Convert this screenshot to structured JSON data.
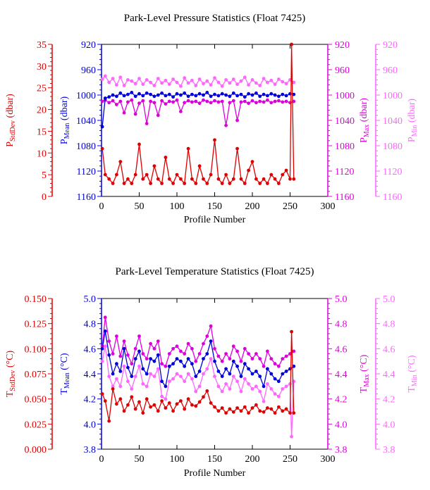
{
  "colors": {
    "red": "#dd0000",
    "blue": "#0000dd",
    "magenta": "#dd00dd",
    "pink": "#ff66ff",
    "black": "#000000"
  },
  "chart_data": [
    {
      "type": "line",
      "title": "Park-Level Pressure Statistics (Float 7425)",
      "xlabel": "Profile Number",
      "xlim": [
        0,
        300
      ],
      "xticks": [
        "0",
        "50",
        "100",
        "150",
        "200",
        "250",
        "300"
      ],
      "axes": {
        "stddev": {
          "label_main": "P",
          "label_sub": "StdDev",
          "label_tail": " (dbar)",
          "ylim": [
            0,
            35
          ],
          "ticks": [
            "0",
            "5",
            "10",
            "15",
            "20",
            "25",
            "30",
            "35"
          ]
        },
        "mean": {
          "label_main": "P",
          "label_sub": "Mean",
          "label_tail": " (dbar)",
          "ylim": [
            1160,
            920
          ],
          "inverted": true,
          "ticks": [
            "920",
            "960",
            "1000",
            "1040",
            "1080",
            "1120",
            "1160"
          ]
        },
        "max": {
          "label_main": "P",
          "label_sub": "Max",
          "label_tail": " (dbar)",
          "ylim": [
            1160,
            920
          ],
          "inverted": true,
          "ticks": [
            "920",
            "960",
            "1000",
            "1040",
            "1080",
            "1120",
            "1160"
          ]
        },
        "min": {
          "label_main": "P",
          "label_sub": "Min",
          "label_tail": " (dbar)",
          "ylim": [
            1160,
            920
          ],
          "inverted": true,
          "ticks": [
            "920",
            "960",
            "1000",
            "1040",
            "1080",
            "1120",
            "1160"
          ]
        }
      },
      "series": [
        {
          "axis": "stddev",
          "color": "red",
          "x": [
            1,
            5,
            10,
            15,
            20,
            25,
            30,
            35,
            40,
            45,
            50,
            55,
            60,
            65,
            70,
            75,
            80,
            85,
            90,
            95,
            100,
            105,
            110,
            115,
            120,
            125,
            130,
            135,
            140,
            145,
            150,
            155,
            160,
            165,
            170,
            175,
            180,
            185,
            190,
            195,
            200,
            205,
            210,
            215,
            220,
            225,
            230,
            235,
            240,
            245,
            250,
            252,
            255
          ],
          "y": [
            11,
            5,
            4,
            3,
            5,
            8,
            3,
            4,
            3,
            5,
            12,
            4,
            5,
            3,
            7,
            4,
            3,
            9,
            4,
            3,
            5,
            4,
            3,
            11,
            4,
            3,
            7,
            4,
            3,
            5,
            13,
            4,
            3,
            5,
            3,
            4,
            11,
            4,
            3,
            6,
            8,
            4,
            3,
            4,
            3,
            5,
            4,
            3,
            5,
            6,
            4,
            35,
            4
          ]
        },
        {
          "axis": "mean",
          "color": "blue",
          "x": [
            1,
            5,
            10,
            15,
            20,
            25,
            30,
            35,
            40,
            45,
            50,
            55,
            60,
            65,
            70,
            75,
            80,
            85,
            90,
            95,
            100,
            105,
            110,
            115,
            120,
            125,
            130,
            135,
            140,
            145,
            150,
            155,
            160,
            165,
            170,
            175,
            180,
            185,
            190,
            195,
            200,
            205,
            210,
            215,
            220,
            225,
            230,
            235,
            240,
            245,
            250,
            255
          ],
          "y": [
            1050,
            1005,
            1003,
            1000,
            1002,
            997,
            1001,
            999,
            996,
            1002,
            998,
            1001,
            997,
            999,
            1002,
            1000,
            997,
            1001,
            999,
            1003,
            998,
            1000,
            997,
            1002,
            999,
            1001,
            998,
            1000,
            996,
            1002,
            999,
            1001,
            998,
            1000,
            1002,
            997,
            1001,
            999,
            1003,
            998,
            1000,
            997,
            1002,
            999,
            1001,
            998,
            1000,
            1002,
            999,
            1001,
            998,
            999
          ]
        },
        {
          "axis": "max",
          "color": "magenta",
          "x": [
            1,
            5,
            10,
            15,
            20,
            25,
            30,
            35,
            40,
            45,
            50,
            55,
            60,
            65,
            70,
            75,
            80,
            85,
            90,
            95,
            100,
            105,
            110,
            115,
            120,
            125,
            130,
            135,
            140,
            145,
            150,
            155,
            160,
            165,
            170,
            175,
            180,
            185,
            190,
            195,
            200,
            205,
            210,
            215,
            220,
            225,
            230,
            235,
            240,
            245,
            250,
            255
          ],
          "y": [
            1010,
            1008,
            1012,
            1009,
            1015,
            1010,
            1028,
            1011,
            1008,
            1030,
            1013,
            1009,
            1045,
            1010,
            1012,
            1032,
            1009,
            1014,
            1010,
            1011,
            1008,
            1026,
            1012,
            1009,
            1011,
            1010,
            1013,
            1008,
            1010,
            1012,
            1009,
            1011,
            1010,
            1048,
            1012,
            1009,
            1040,
            1011,
            1010,
            1013,
            1009,
            1012,
            1010,
            1011,
            1008,
            1012,
            1010,
            1009,
            1011,
            1010,
            1012,
            1010
          ]
        },
        {
          "axis": "min",
          "color": "pink",
          "x": [
            1,
            5,
            10,
            15,
            20,
            25,
            30,
            35,
            40,
            45,
            50,
            55,
            60,
            65,
            70,
            75,
            80,
            85,
            90,
            95,
            100,
            105,
            110,
            115,
            120,
            125,
            130,
            135,
            140,
            145,
            150,
            155,
            160,
            165,
            170,
            175,
            180,
            185,
            190,
            195,
            200,
            205,
            210,
            215,
            220,
            225,
            230,
            235,
            240,
            245,
            250,
            255
          ],
          "y": [
            975,
            970,
            980,
            974,
            984,
            972,
            985,
            976,
            978,
            982,
            974,
            983,
            976,
            980,
            985,
            974,
            981,
            977,
            983,
            975,
            980,
            986,
            973,
            981,
            977,
            985,
            975,
            982,
            978,
            984,
            973,
            980,
            986,
            976,
            981,
            975,
            983,
            978,
            972,
            984,
            976,
            981,
            985,
            974,
            980,
            977,
            983,
            975,
            979,
            982,
            976,
            980
          ]
        }
      ]
    },
    {
      "type": "line",
      "title": "Park-Level Temperature Statistics (Float 7425)",
      "xlabel": "Profile Number",
      "xlim": [
        0,
        300
      ],
      "xticks": [
        "0",
        "50",
        "100",
        "150",
        "200",
        "250",
        "300"
      ],
      "axes": {
        "stddev": {
          "label_main": "T",
          "label_sub": "StdDev",
          "label_tail": " (°C)",
          "ylim": [
            0,
            0.15
          ],
          "ticks": [
            "0.000",
            "0.025",
            "0.050",
            "0.075",
            "0.100",
            "0.125",
            "0.150"
          ]
        },
        "mean": {
          "label_main": "T",
          "label_sub": "Mean",
          "label_tail": " (°C)",
          "ylim": [
            3.8,
            5.0
          ],
          "ticks": [
            "3.8",
            "4.0",
            "4.2",
            "4.4",
            "4.6",
            "4.8",
            "5.0"
          ]
        },
        "max": {
          "label_main": "T",
          "label_sub": "Max",
          "label_tail": " (°C)",
          "ylim": [
            3.8,
            5.0
          ],
          "ticks": [
            "3.8",
            "4.0",
            "4.2",
            "4.4",
            "4.6",
            "4.8",
            "5.0"
          ]
        },
        "min": {
          "label_main": "T",
          "label_sub": "Min",
          "label_tail": " (°C)",
          "ylim": [
            3.8,
            5.0
          ],
          "ticks": [
            "3.8",
            "4.0",
            "4.2",
            "4.4",
            "4.6",
            "4.8",
            "5.0"
          ]
        }
      },
      "series": [
        {
          "axis": "stddev",
          "color": "red",
          "x": [
            1,
            5,
            10,
            15,
            20,
            25,
            30,
            35,
            40,
            45,
            50,
            55,
            60,
            65,
            70,
            75,
            80,
            85,
            90,
            95,
            100,
            105,
            110,
            115,
            120,
            125,
            130,
            135,
            140,
            145,
            150,
            155,
            160,
            165,
            170,
            175,
            180,
            185,
            190,
            195,
            200,
            205,
            210,
            215,
            220,
            225,
            230,
            235,
            240,
            245,
            250,
            252,
            255
          ],
          "y": [
            0.055,
            0.048,
            0.028,
            0.06,
            0.045,
            0.05,
            0.038,
            0.044,
            0.052,
            0.04,
            0.047,
            0.036,
            0.05,
            0.042,
            0.044,
            0.038,
            0.048,
            0.041,
            0.046,
            0.038,
            0.045,
            0.048,
            0.04,
            0.05,
            0.044,
            0.043,
            0.047,
            0.052,
            0.058,
            0.046,
            0.042,
            0.038,
            0.041,
            0.036,
            0.04,
            0.037,
            0.041,
            0.038,
            0.042,
            0.036,
            0.041,
            0.044,
            0.038,
            0.037,
            0.041,
            0.04,
            0.036,
            0.042,
            0.038,
            0.04,
            0.036,
            0.117,
            0.036
          ]
        },
        {
          "axis": "mean",
          "color": "blue",
          "x": [
            1,
            5,
            10,
            15,
            20,
            25,
            30,
            35,
            40,
            45,
            50,
            55,
            60,
            65,
            70,
            75,
            80,
            85,
            90,
            95,
            100,
            105,
            110,
            115,
            120,
            125,
            130,
            135,
            140,
            145,
            150,
            155,
            160,
            165,
            170,
            175,
            180,
            185,
            190,
            195,
            200,
            205,
            210,
            215,
            220,
            225,
            230,
            235,
            240,
            245,
            250,
            255
          ],
          "y": [
            4.6,
            4.74,
            4.55,
            4.4,
            4.48,
            4.42,
            4.6,
            4.45,
            4.38,
            4.52,
            4.58,
            4.44,
            4.4,
            4.52,
            4.5,
            4.55,
            4.34,
            4.3,
            4.46,
            4.48,
            4.52,
            4.5,
            4.46,
            4.52,
            4.48,
            4.38,
            4.42,
            4.52,
            4.56,
            4.66,
            4.5,
            4.42,
            4.38,
            4.44,
            4.4,
            4.5,
            4.46,
            4.38,
            4.48,
            4.44,
            4.4,
            4.42,
            4.38,
            4.3,
            4.44,
            4.4,
            4.36,
            4.34,
            4.4,
            4.42,
            4.44,
            4.46
          ]
        },
        {
          "axis": "max",
          "color": "magenta",
          "x": [
            1,
            5,
            10,
            15,
            20,
            25,
            30,
            35,
            40,
            45,
            50,
            55,
            60,
            65,
            70,
            75,
            80,
            85,
            90,
            95,
            100,
            105,
            110,
            115,
            120,
            125,
            130,
            135,
            140,
            145,
            150,
            155,
            160,
            165,
            170,
            175,
            180,
            185,
            190,
            195,
            200,
            205,
            210,
            215,
            220,
            225,
            230,
            235,
            240,
            245,
            250,
            255
          ],
          "y": [
            4.62,
            4.85,
            4.66,
            4.56,
            4.7,
            4.54,
            4.66,
            4.55,
            4.48,
            4.6,
            4.7,
            4.56,
            4.52,
            4.64,
            4.6,
            4.66,
            4.48,
            4.46,
            4.56,
            4.6,
            4.62,
            4.58,
            4.56,
            4.64,
            4.6,
            4.5,
            4.56,
            4.64,
            4.7,
            4.78,
            4.6,
            4.54,
            4.5,
            4.56,
            4.52,
            4.62,
            4.58,
            4.5,
            4.6,
            4.56,
            4.52,
            4.56,
            4.52,
            4.46,
            4.58,
            4.52,
            4.48,
            4.46,
            4.52,
            4.54,
            4.56,
            4.58
          ]
        },
        {
          "axis": "min",
          "color": "pink",
          "x": [
            1,
            5,
            10,
            15,
            20,
            25,
            30,
            35,
            40,
            45,
            50,
            55,
            60,
            65,
            70,
            75,
            80,
            85,
            90,
            95,
            100,
            105,
            110,
            115,
            120,
            125,
            130,
            135,
            140,
            145,
            150,
            155,
            160,
            165,
            170,
            175,
            180,
            185,
            190,
            195,
            200,
            205,
            210,
            215,
            220,
            225,
            230,
            235,
            240,
            245,
            250,
            252,
            255
          ],
          "y": [
            4.5,
            4.62,
            4.38,
            4.3,
            4.36,
            4.3,
            4.46,
            4.34,
            4.28,
            4.38,
            4.46,
            4.32,
            4.3,
            4.4,
            4.38,
            4.44,
            4.22,
            4.2,
            4.34,
            4.36,
            4.4,
            4.38,
            4.34,
            4.4,
            4.36,
            4.26,
            4.3,
            4.4,
            4.44,
            4.52,
            4.38,
            4.3,
            4.26,
            4.32,
            4.28,
            4.38,
            4.34,
            4.26,
            4.36,
            4.32,
            4.28,
            4.3,
            4.26,
            4.18,
            4.32,
            4.28,
            4.24,
            4.22,
            4.28,
            4.3,
            4.32,
            3.9,
            4.34
          ]
        }
      ]
    }
  ]
}
